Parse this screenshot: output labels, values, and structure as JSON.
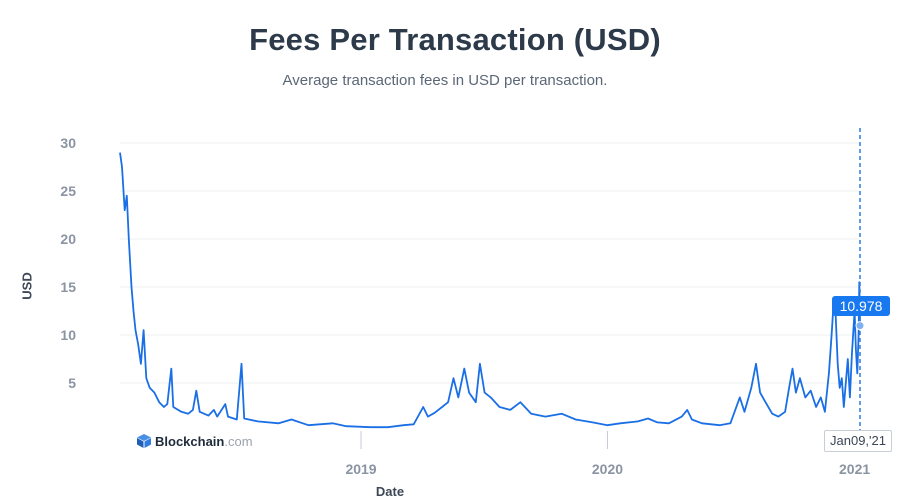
{
  "header": {
    "title": "Fees Per Transaction (USD)",
    "subtitle": "Average transaction fees in USD per transaction."
  },
  "brand": {
    "name": "Blockchain",
    "tld": ".com",
    "icon": "blockchain-logo-icon"
  },
  "tooltip": {
    "value": "10.978",
    "date": "Jan09,'21"
  },
  "colors": {
    "line": "#1a6fe6",
    "tooltip": "#1878f0",
    "grid": "#eceff3",
    "axis_text": "#8a94a2"
  },
  "chart_data": {
    "type": "line",
    "title": "Fees Per Transaction (USD)",
    "subtitle": "Average transaction fees in USD per transaction.",
    "xlabel": "Date",
    "ylabel": "USD",
    "xlim": [
      "2018-01-09",
      "2021-01-09"
    ],
    "ylim": [
      0,
      30
    ],
    "y_ticks": [
      5,
      10,
      15,
      20,
      25,
      30
    ],
    "x_ticks": [
      {
        "label": "2019",
        "date": "2019-01-01"
      },
      {
        "label": "2020",
        "date": "2020-01-01"
      },
      {
        "label": "2021",
        "date": "2021-01-01"
      }
    ],
    "grid": true,
    "series": [
      {
        "values": [
          [
            "2018-01-09",
            29.0
          ],
          [
            "2018-01-12",
            27.5
          ],
          [
            "2018-01-16",
            23.0
          ],
          [
            "2018-01-19",
            24.5
          ],
          [
            "2018-01-22",
            20.0
          ],
          [
            "2018-01-26",
            15.0
          ],
          [
            "2018-01-29",
            12.5
          ],
          [
            "2018-02-01",
            10.5
          ],
          [
            "2018-02-05",
            9.0
          ],
          [
            "2018-02-09",
            7.0
          ],
          [
            "2018-02-13",
            10.5
          ],
          [
            "2018-02-17",
            5.5
          ],
          [
            "2018-02-22",
            4.5
          ],
          [
            "2018-03-01",
            4.0
          ],
          [
            "2018-03-08",
            3.0
          ],
          [
            "2018-03-15",
            2.5
          ],
          [
            "2018-03-20",
            2.8
          ],
          [
            "2018-03-26",
            6.5
          ],
          [
            "2018-03-29",
            2.5
          ],
          [
            "2018-04-10",
            2.0
          ],
          [
            "2018-04-20",
            1.8
          ],
          [
            "2018-04-27",
            2.2
          ],
          [
            "2018-05-02",
            4.2
          ],
          [
            "2018-05-07",
            2.0
          ],
          [
            "2018-05-20",
            1.6
          ],
          [
            "2018-05-28",
            2.2
          ],
          [
            "2018-06-02",
            1.5
          ],
          [
            "2018-06-14",
            2.8
          ],
          [
            "2018-06-18",
            1.5
          ],
          [
            "2018-07-01",
            1.2
          ],
          [
            "2018-07-08",
            7.0
          ],
          [
            "2018-07-12",
            1.3
          ],
          [
            "2018-08-01",
            1.0
          ],
          [
            "2018-09-01",
            0.8
          ],
          [
            "2018-09-20",
            1.2
          ],
          [
            "2018-10-15",
            0.6
          ],
          [
            "2018-11-20",
            0.8
          ],
          [
            "2018-12-10",
            0.5
          ],
          [
            "2019-01-15",
            0.4
          ],
          [
            "2019-02-10",
            0.4
          ],
          [
            "2019-03-05",
            0.6
          ],
          [
            "2019-03-20",
            0.7
          ],
          [
            "2019-04-03",
            2.5
          ],
          [
            "2019-04-10",
            1.5
          ],
          [
            "2019-04-20",
            1.9
          ],
          [
            "2019-05-01",
            2.5
          ],
          [
            "2019-05-10",
            3.0
          ],
          [
            "2019-05-18",
            5.5
          ],
          [
            "2019-05-25",
            3.5
          ],
          [
            "2019-06-03",
            6.5
          ],
          [
            "2019-06-10",
            4.0
          ],
          [
            "2019-06-20",
            3.0
          ],
          [
            "2019-06-26",
            7.0
          ],
          [
            "2019-07-03",
            4.0
          ],
          [
            "2019-07-12",
            3.5
          ],
          [
            "2019-07-25",
            2.5
          ],
          [
            "2019-08-10",
            2.2
          ],
          [
            "2019-08-25",
            3.0
          ],
          [
            "2019-09-10",
            1.8
          ],
          [
            "2019-10-01",
            1.5
          ],
          [
            "2019-10-25",
            1.8
          ],
          [
            "2019-11-15",
            1.2
          ],
          [
            "2019-12-10",
            0.9
          ],
          [
            "2020-01-01",
            0.6
          ],
          [
            "2020-01-20",
            0.8
          ],
          [
            "2020-02-15",
            1.0
          ],
          [
            "2020-03-01",
            1.3
          ],
          [
            "2020-03-15",
            0.9
          ],
          [
            "2020-04-01",
            0.8
          ],
          [
            "2020-04-20",
            1.5
          ],
          [
            "2020-04-28",
            2.2
          ],
          [
            "2020-05-05",
            1.2
          ],
          [
            "2020-05-20",
            0.8
          ],
          [
            "2020-06-15",
            0.6
          ],
          [
            "2020-07-01",
            0.8
          ],
          [
            "2020-07-15",
            3.5
          ],
          [
            "2020-07-22",
            2.0
          ],
          [
            "2020-08-01",
            4.5
          ],
          [
            "2020-08-08",
            7.0
          ],
          [
            "2020-08-14",
            4.0
          ],
          [
            "2020-08-22",
            3.0
          ],
          [
            "2020-09-01",
            1.8
          ],
          [
            "2020-09-10",
            1.5
          ],
          [
            "2020-09-20",
            2.0
          ],
          [
            "2020-09-26",
            4.5
          ],
          [
            "2020-10-01",
            6.5
          ],
          [
            "2020-10-06",
            4.0
          ],
          [
            "2020-10-12",
            5.5
          ],
          [
            "2020-10-20",
            3.5
          ],
          [
            "2020-10-28",
            4.2
          ],
          [
            "2020-11-05",
            2.5
          ],
          [
            "2020-11-12",
            3.5
          ],
          [
            "2020-11-18",
            2.0
          ],
          [
            "2020-11-24",
            6.0
          ],
          [
            "2020-11-28",
            10.0
          ],
          [
            "2020-12-01",
            13.5
          ],
          [
            "2020-12-04",
            12.0
          ],
          [
            "2020-12-07",
            7.0
          ],
          [
            "2020-12-10",
            4.5
          ],
          [
            "2020-12-13",
            5.5
          ],
          [
            "2020-12-16",
            2.5
          ],
          [
            "2020-12-19",
            5.0
          ],
          [
            "2020-12-22",
            7.5
          ],
          [
            "2020-12-25",
            3.5
          ],
          [
            "2020-12-28",
            8.0
          ],
          [
            "2021-01-01",
            12.5
          ],
          [
            "2021-01-03",
            8.5
          ],
          [
            "2021-01-05",
            6.0
          ],
          [
            "2021-01-07",
            10.0
          ],
          [
            "2021-01-08",
            15.5
          ],
          [
            "2021-01-09",
            10.978
          ]
        ]
      }
    ]
  }
}
